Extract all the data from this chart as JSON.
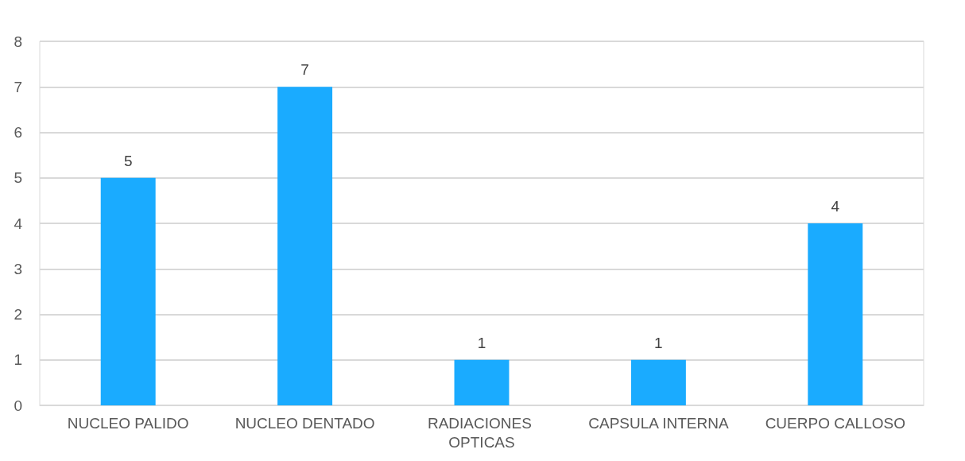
{
  "chart_data": {
    "type": "bar",
    "categories": [
      "NUCLEO PALIDO",
      "NUCLEO DENTADO",
      "RADIACIONES OPTICAS",
      "CAPSULA INTERNA",
      "CUERPO CALLOSO"
    ],
    "values": [
      5,
      7,
      1,
      1,
      4
    ],
    "color": "#1aabff",
    "ylim": [
      0,
      8
    ],
    "yticks": [
      0,
      1,
      2,
      3,
      4,
      5,
      6,
      7,
      8
    ],
    "grid": "y",
    "data_labels": true
  }
}
